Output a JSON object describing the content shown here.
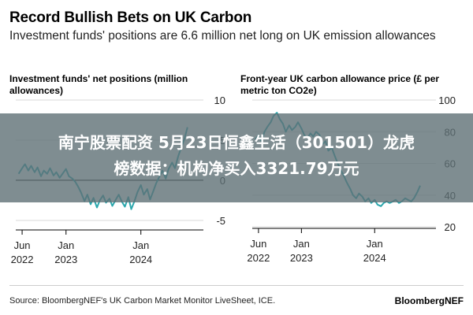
{
  "title": "Record Bullish Bets on UK Carbon",
  "subtitle": "Investment funds' positions are 6.6 million net long on UK emission allowances",
  "overlay": {
    "line1": "南宁股票配资 5月23日恒鑫生活（301501）龙虎",
    "line2": "榜数据：机构净买入3321.79万元"
  },
  "footer": {
    "source": "Source: BloombergNEF's UK Carbon Market Monitor LiveSheet, ICE.",
    "brand": "BloombergNEF"
  },
  "colors": {
    "line": "#2ba7ad",
    "zero_line": "#000000",
    "grid": "#d9d9d9",
    "overlay": "#5f7076"
  },
  "chart_data": [
    {
      "type": "line",
      "title": "Investment funds' net positions (million allowances)",
      "x_ticks": [
        {
          "date": "2022-06-01",
          "line1": "Jun",
          "line2": "2022"
        },
        {
          "date": "2023-01-01",
          "line1": "Jan",
          "line2": "2023"
        },
        {
          "date": "2024-01-01",
          "line1": "Jan",
          "line2": "2024"
        }
      ],
      "xlim": [
        "2022-05-01",
        "2024-10-01"
      ],
      "y_ticks": [
        10,
        5,
        0,
        -5
      ],
      "ylim": [
        -6,
        10
      ],
      "grid": true,
      "series": [
        {
          "x": [
            "2022-05-15",
            "2022-06-01",
            "2022-06-15",
            "2022-07-01",
            "2022-07-15",
            "2022-08-01",
            "2022-08-15",
            "2022-09-01",
            "2022-09-15",
            "2022-10-01",
            "2022-10-15",
            "2022-11-01",
            "2022-11-15",
            "2022-12-01",
            "2022-12-15",
            "2023-01-01",
            "2023-01-15",
            "2023-02-01",
            "2023-02-15",
            "2023-03-01",
            "2023-03-15",
            "2023-04-01",
            "2023-04-15",
            "2023-05-01",
            "2023-05-15",
            "2023-06-01",
            "2023-06-15",
            "2023-07-01",
            "2023-07-15",
            "2023-08-01",
            "2023-08-15",
            "2023-09-01",
            "2023-09-15",
            "2023-10-01",
            "2023-10-15",
            "2023-11-01",
            "2023-11-15",
            "2023-12-01",
            "2023-12-15",
            "2024-01-01",
            "2024-01-15",
            "2024-02-01",
            "2024-02-15",
            "2024-03-01",
            "2024-03-15",
            "2024-04-01",
            "2024-04-15",
            "2024-05-01",
            "2024-05-15",
            "2024-06-01",
            "2024-06-15",
            "2024-07-01",
            "2024-07-15",
            "2024-08-01",
            "2024-08-15"
          ],
          "y": [
            0.8,
            1.5,
            2.0,
            1.2,
            1.8,
            1.0,
            1.6,
            0.5,
            1.2,
            0.8,
            1.5,
            0.6,
            1.0,
            0.3,
            0.8,
            1.4,
            0.5,
            0.2,
            -0.2,
            -0.8,
            -1.5,
            -2.6,
            -1.8,
            -3.0,
            -2.2,
            -3.4,
            -2.5,
            -1.9,
            -2.8,
            -2.3,
            -3.2,
            -2.4,
            -1.8,
            -2.7,
            -3.3,
            -2.1,
            -3.6,
            -2.6,
            -1.5,
            -0.6,
            -1.8,
            -1.1,
            -2.4,
            -1.4,
            -0.4,
            0.5,
            1.2,
            0.2,
            1.4,
            2.2,
            1.5,
            3.0,
            4.0,
            5.2,
            6.6
          ]
        }
      ]
    },
    {
      "type": "line",
      "title": "Front-year UK carbon allowance price (£ per metric ton CO2e)",
      "x_ticks": [
        {
          "date": "2022-06-01",
          "line1": "Jun",
          "line2": "2022"
        },
        {
          "date": "2023-01-01",
          "line1": "Jan",
          "line2": "2023"
        },
        {
          "date": "2024-01-01",
          "line1": "Jan",
          "line2": "2024"
        }
      ],
      "xlim": [
        "2022-05-01",
        "2024-10-01"
      ],
      "y_ticks": [
        100,
        80,
        60,
        40,
        20
      ],
      "ylim": [
        20,
        100
      ],
      "grid": true,
      "series": [
        {
          "x": [
            "2022-05-15",
            "2022-06-01",
            "2022-06-15",
            "2022-07-01",
            "2022-07-15",
            "2022-08-01",
            "2022-08-15",
            "2022-09-01",
            "2022-09-15",
            "2022-10-01",
            "2022-10-15",
            "2022-11-01",
            "2022-11-15",
            "2022-12-01",
            "2022-12-15",
            "2023-01-01",
            "2023-01-15",
            "2023-02-01",
            "2023-02-15",
            "2023-03-01",
            "2023-03-15",
            "2023-04-01",
            "2023-04-15",
            "2023-05-01",
            "2023-05-15",
            "2023-06-01",
            "2023-06-15",
            "2023-07-01",
            "2023-07-15",
            "2023-08-01",
            "2023-08-15",
            "2023-09-01",
            "2023-09-15",
            "2023-10-01",
            "2023-10-15",
            "2023-11-01",
            "2023-11-15",
            "2023-12-01",
            "2023-12-15",
            "2024-01-01",
            "2024-01-15",
            "2024-02-01",
            "2024-02-15",
            "2024-03-01",
            "2024-03-15",
            "2024-04-01",
            "2024-04-15",
            "2024-05-01",
            "2024-05-15",
            "2024-06-01",
            "2024-06-15",
            "2024-07-01",
            "2024-07-15",
            "2024-08-01",
            "2024-08-15"
          ],
          "y": [
            75,
            78,
            74,
            80,
            83,
            86,
            90,
            92,
            88,
            85,
            80,
            84,
            81,
            83,
            86,
            82,
            78,
            76,
            79,
            77,
            80,
            78,
            72,
            74,
            68,
            70,
            65,
            60,
            56,
            52,
            48,
            44,
            40,
            38,
            41,
            39,
            36,
            38,
            35,
            37,
            34,
            33,
            35,
            36,
            35,
            36,
            37,
            35,
            36,
            38,
            37,
            36,
            38,
            42,
            46
          ]
        }
      ]
    }
  ]
}
